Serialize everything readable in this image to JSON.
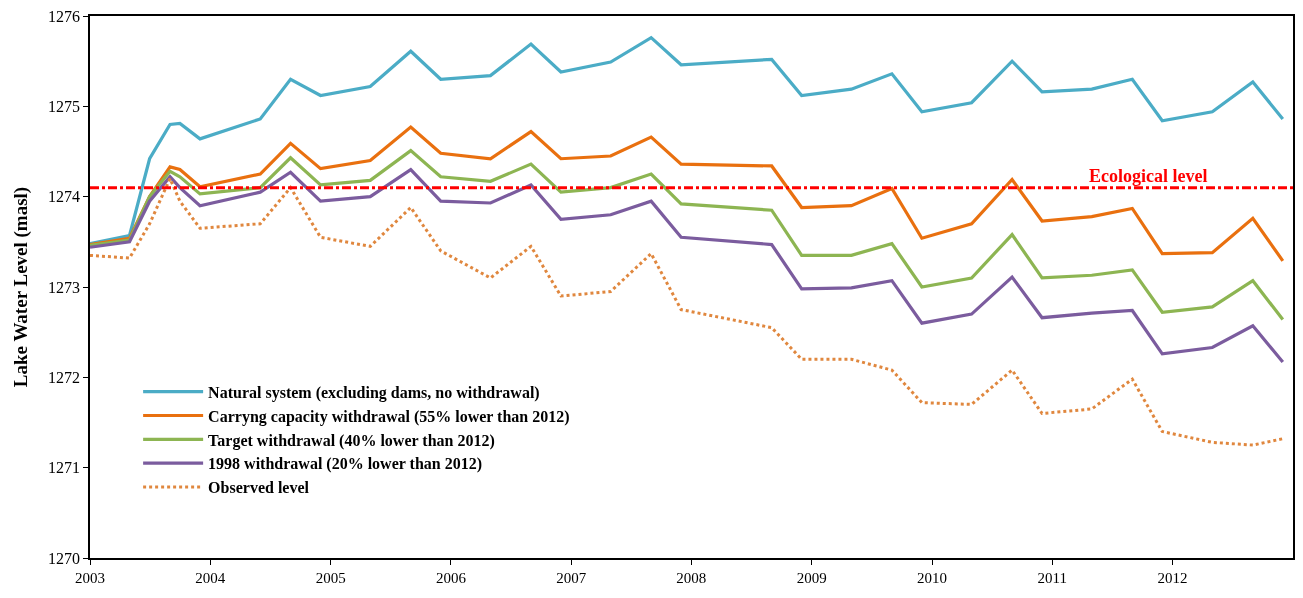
{
  "chart_data": {
    "type": "line",
    "ylabel": "Lake Water Level (masl)",
    "x": [
      "2003-01",
      "2003-05",
      "2003-07",
      "2003-09",
      "2003-10",
      "2003-12",
      "2004-06",
      "2004-09",
      "2004-12",
      "2005-05",
      "2005-09",
      "2005-12",
      "2006-05",
      "2006-09",
      "2006-12",
      "2007-05",
      "2007-09",
      "2007-12",
      "2008-09",
      "2008-12",
      "2009-05",
      "2009-09",
      "2009-12",
      "2010-05",
      "2010-09",
      "2010-12",
      "2011-05",
      "2011-09",
      "2011-12",
      "2012-05",
      "2012-09",
      "2012-12"
    ],
    "series": [
      {
        "name": "Natural system (excluding dams, no withdrawal)",
        "color": "#4bacc6",
        "values": [
          1273.48,
          1273.57,
          1274.42,
          1274.8,
          1274.81,
          1274.64,
          1274.86,
          1275.3,
          1275.12,
          1275.22,
          1275.61,
          1275.3,
          1275.34,
          1275.69,
          1275.38,
          1275.49,
          1275.76,
          1275.46,
          1275.52,
          1275.12,
          1275.19,
          1275.36,
          1274.94,
          1275.04,
          1275.5,
          1275.16,
          1275.19,
          1275.3,
          1274.84,
          1274.94,
          1275.27,
          1274.86
        ]
      },
      {
        "name": "Carryng capacity withdrawal (55% lower than 2012)",
        "color": "#e9700f",
        "values": [
          1273.47,
          1273.54,
          1274.0,
          1274.33,
          1274.3,
          1274.11,
          1274.25,
          1274.59,
          1274.31,
          1274.4,
          1274.77,
          1274.48,
          1274.42,
          1274.72,
          1274.42,
          1274.45,
          1274.66,
          1274.36,
          1274.34,
          1273.88,
          1273.9,
          1274.09,
          1273.54,
          1273.7,
          1274.19,
          1273.73,
          1273.78,
          1273.87,
          1273.37,
          1273.38,
          1273.76,
          1273.29
        ]
      },
      {
        "name": "Target withdrawal (40% lower than 2012)",
        "color": "#8db552",
        "values": [
          1273.46,
          1273.52,
          1274.0,
          1274.28,
          1274.22,
          1274.03,
          1274.1,
          1274.43,
          1274.13,
          1274.18,
          1274.51,
          1274.22,
          1274.17,
          1274.36,
          1274.05,
          1274.1,
          1274.25,
          1273.92,
          1273.85,
          1273.35,
          1273.35,
          1273.48,
          1273.0,
          1273.1,
          1273.58,
          1273.1,
          1273.13,
          1273.19,
          1272.72,
          1272.78,
          1273.07,
          1272.64
        ]
      },
      {
        "name": "1998 withdrawal (20% lower than 2012)",
        "color": "#7b5c9e",
        "values": [
          1273.44,
          1273.5,
          1273.95,
          1274.22,
          1274.1,
          1273.9,
          1274.05,
          1274.27,
          1273.95,
          1274.0,
          1274.3,
          1273.95,
          1273.93,
          1274.13,
          1273.75,
          1273.8,
          1273.95,
          1273.55,
          1273.47,
          1272.98,
          1272.99,
          1273.07,
          1272.6,
          1272.7,
          1273.11,
          1272.66,
          1272.71,
          1272.74,
          1272.26,
          1272.33,
          1272.57,
          1272.17
        ]
      },
      {
        "name": "Observed level",
        "color": "#e0873e",
        "line_style": "dotted",
        "values": [
          1273.35,
          1273.32,
          1273.7,
          1274.2,
          1273.95,
          1273.65,
          1273.7,
          1274.1,
          1273.55,
          1273.45,
          1273.88,
          1273.4,
          1273.1,
          1273.45,
          1272.9,
          1272.95,
          1273.37,
          1272.75,
          1272.55,
          1272.2,
          1272.2,
          1272.08,
          1271.72,
          1271.7,
          1272.08,
          1271.6,
          1271.65,
          1271.98,
          1271.4,
          1271.28,
          1271.25,
          1271.32
        ]
      }
    ],
    "xlim": [
      "2003-01",
      "2013-01"
    ],
    "xticks": [
      "2003",
      "2004",
      "2005",
      "2006",
      "2007",
      "2008",
      "2009",
      "2010",
      "2011",
      "2012"
    ],
    "ylim": [
      1270,
      1276
    ],
    "yticks": [
      1270,
      1271,
      1272,
      1273,
      1274,
      1275,
      1276
    ],
    "ref_lines": [
      {
        "axis": "y",
        "value": 1274.1,
        "label": "Ecological level",
        "color": "#ff0000",
        "line_style": "dashed"
      }
    ],
    "legend": "bottom left",
    "line_style": "solid",
    "marker": "none"
  }
}
